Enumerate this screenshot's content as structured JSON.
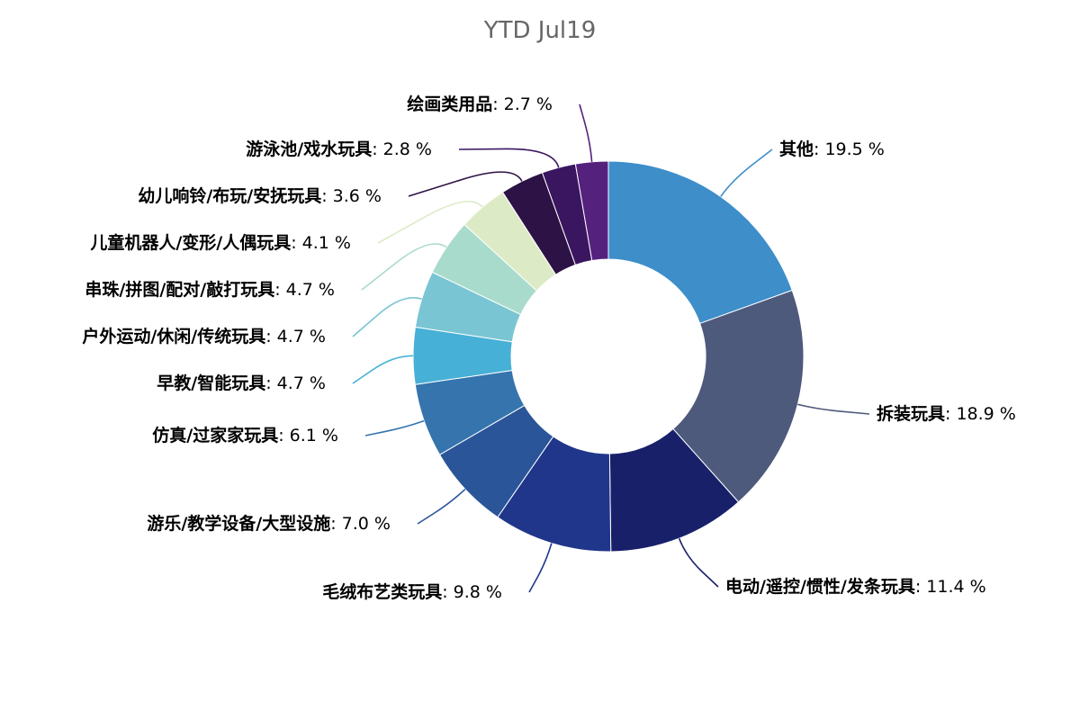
{
  "chart_data": {
    "type": "pie",
    "title": "YTD Jul19",
    "donut": true,
    "legend": "none",
    "slices": [
      {
        "name": "其他",
        "value": 19.5,
        "value_label": "19.5 %",
        "color": "#3d8ec9"
      },
      {
        "name": "拆装玩具",
        "value": 18.9,
        "value_label": "18.9 %",
        "color": "#4e5a7c"
      },
      {
        "name": "电动/遥控/惯性/发条玩具",
        "value": 11.4,
        "value_label": "11.4 %",
        "color": "#18206a"
      },
      {
        "name": "毛绒布艺类玩具",
        "value": 9.8,
        "value_label": "9.8 %",
        "color": "#20368a"
      },
      {
        "name": "游乐/教学设备/大型设施",
        "value": 7.0,
        "value_label": "7.0 %",
        "color": "#2a5598"
      },
      {
        "name": "仿真/过家家玩具",
        "value": 6.1,
        "value_label": "6.1 %",
        "color": "#3574ad"
      },
      {
        "name": "早教/智能玩具",
        "value": 4.7,
        "value_label": "4.7 %",
        "color": "#47b0d6"
      },
      {
        "name": "户外运动/休闲/传统玩具",
        "value": 4.7,
        "value_label": "4.7 %",
        "color": "#7ac5d3"
      },
      {
        "name": "串珠/拼图/配对/敲打玩具",
        "value": 4.7,
        "value_label": "4.7 %",
        "color": "#a9dbcc"
      },
      {
        "name": "儿童机器人/变形/人偶玩具",
        "value": 4.1,
        "value_label": "4.1 %",
        "color": "#dcebc6"
      },
      {
        "name": "幼儿响铃/布玩/安抚玩具",
        "value": 3.6,
        "value_label": "3.6 %",
        "color": "#2d1245"
      },
      {
        "name": "游泳池/戏水玩具",
        "value": 2.8,
        "value_label": "2.8 %",
        "color": "#3a1660"
      },
      {
        "name": "绘画类用品",
        "value": 2.7,
        "value_label": "2.7 %",
        "color": "#54217d"
      }
    ]
  }
}
